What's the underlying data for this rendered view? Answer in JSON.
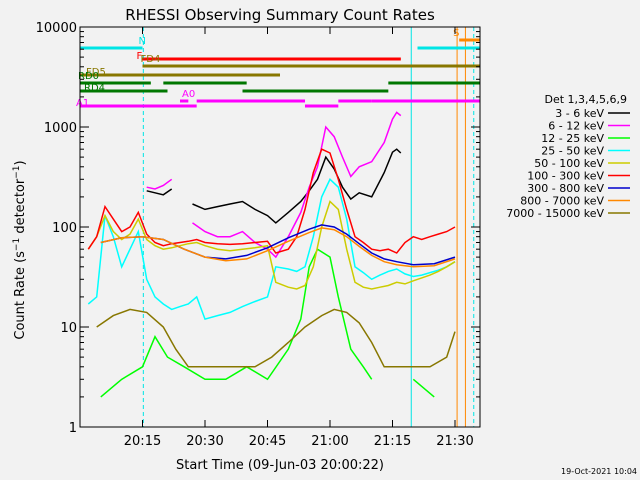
{
  "chart_data": {
    "type": "line",
    "title": "RHESSI Observing Summary Count Rates",
    "xlabel": "Start Time (09-Jun-03 20:00:22)",
    "ylabel": "Count Rate (s⁻¹ detector⁻¹)",
    "ylabel_parts": [
      "Count Rate (s",
      "−1",
      " detector",
      "−1",
      ")"
    ],
    "yscale": "log",
    "xlim": [
      0,
      96
    ],
    "ylim": [
      1,
      10000
    ],
    "x_ticks": [
      {
        "value": 15,
        "label": "20:15"
      },
      {
        "value": 30,
        "label": "20:30"
      },
      {
        "value": 45,
        "label": "20:45"
      },
      {
        "value": 60,
        "label": "21:00"
      },
      {
        "value": 75,
        "label": "21:15"
      },
      {
        "value": 90,
        "label": "21:30"
      }
    ],
    "y_ticks": [
      {
        "value": 1,
        "label": "1"
      },
      {
        "value": 10,
        "label": "10"
      },
      {
        "value": 100,
        "label": "100"
      },
      {
        "value": 1000,
        "label": "1000"
      },
      {
        "value": 10000,
        "label": "10000"
      }
    ],
    "legend_title": "Det 1,3,4,5,6,9",
    "legend_position": "right",
    "timestamp": "19-Oct-2021 10:04",
    "series": [
      {
        "name": "3 - 6 keV",
        "color": "#000000",
        "x": [
          0,
          4,
          8,
          12,
          15,
          16,
          18,
          20,
          22,
          25,
          27,
          30,
          33,
          36,
          39,
          42,
          45,
          47,
          50,
          53,
          55,
          57,
          59,
          61,
          63,
          65,
          67,
          70,
          73,
          75,
          76,
          77,
          78
        ],
        "y": [
          null,
          null,
          null,
          null,
          null,
          230,
          220,
          210,
          240,
          null,
          170,
          150,
          160,
          170,
          180,
          150,
          130,
          110,
          140,
          180,
          230,
          300,
          500,
          380,
          250,
          190,
          220,
          200,
          350,
          560,
          600,
          550,
          null
        ]
      },
      {
        "name": "6 - 12 keV",
        "color": "#ff00ff",
        "x": [
          0,
          4,
          8,
          12,
          15,
          16,
          18,
          20,
          22,
          25,
          27,
          30,
          33,
          36,
          39,
          42,
          45,
          47,
          50,
          53,
          55,
          57,
          59,
          61,
          63,
          65,
          67,
          70,
          73,
          75,
          76,
          77,
          78
        ],
        "y": [
          null,
          null,
          null,
          null,
          null,
          250,
          240,
          260,
          300,
          null,
          110,
          90,
          80,
          80,
          90,
          70,
          60,
          50,
          80,
          140,
          250,
          400,
          1000,
          800,
          500,
          320,
          400,
          450,
          700,
          1200,
          1400,
          1300,
          null
        ]
      },
      {
        "name": "12 - 25 keV",
        "color": "#00ff00",
        "x": [
          0,
          5,
          10,
          15,
          18,
          21,
          25,
          30,
          35,
          40,
          45,
          50,
          53,
          55,
          57,
          60,
          62,
          65,
          68,
          70,
          73,
          76,
          80,
          85,
          90
        ],
        "y": [
          null,
          2,
          3,
          4,
          8,
          5,
          4,
          3,
          3,
          4,
          3,
          6,
          12,
          40,
          60,
          50,
          20,
          6,
          4,
          3,
          null,
          null,
          3,
          2,
          null
        ]
      },
      {
        "name": "25 - 50 keV",
        "color": "#00ffff",
        "x": [
          0,
          2,
          4,
          6,
          8,
          10,
          12,
          14,
          16,
          18,
          20,
          22,
          24,
          26,
          28,
          30,
          33,
          36,
          39,
          42,
          45,
          47,
          50,
          52,
          54,
          56,
          58,
          60,
          62,
          64,
          66,
          68,
          70,
          72,
          74,
          76,
          78,
          80,
          82,
          84,
          86,
          88,
          90
        ],
        "y": [
          null,
          17,
          20,
          130,
          80,
          40,
          60,
          90,
          30,
          20,
          17,
          15,
          16,
          17,
          20,
          12,
          13,
          14,
          16,
          18,
          20,
          40,
          38,
          36,
          40,
          80,
          200,
          300,
          250,
          120,
          40,
          35,
          30,
          33,
          36,
          38,
          34,
          32,
          33,
          35,
          37,
          40,
          45
        ]
      },
      {
        "name": "50 - 100 keV",
        "color": "#cccc00",
        "x": [
          0,
          2,
          4,
          6,
          8,
          10,
          12,
          14,
          16,
          18,
          20,
          22,
          24,
          26,
          28,
          30,
          33,
          36,
          39,
          42,
          45,
          47,
          50,
          52,
          54,
          56,
          58,
          60,
          62,
          64,
          66,
          68,
          70,
          72,
          74,
          76,
          78,
          80,
          82,
          84,
          86,
          88,
          90
        ],
        "y": [
          null,
          60,
          80,
          130,
          90,
          75,
          85,
          120,
          75,
          65,
          60,
          62,
          65,
          68,
          70,
          65,
          60,
          58,
          60,
          62,
          65,
          28,
          25,
          24,
          26,
          40,
          100,
          180,
          150,
          60,
          28,
          25,
          24,
          25,
          26,
          28,
          27,
          29,
          31,
          33,
          36,
          40,
          45
        ]
      },
      {
        "name": "100 - 300 keV",
        "color": "#ff0000",
        "x": [
          0,
          2,
          4,
          6,
          8,
          10,
          12,
          14,
          16,
          18,
          20,
          22,
          24,
          26,
          28,
          30,
          33,
          36,
          39,
          42,
          45,
          47,
          50,
          52,
          54,
          56,
          58,
          60,
          62,
          64,
          66,
          68,
          70,
          72,
          74,
          76,
          78,
          80,
          82,
          84,
          86,
          88,
          90
        ],
        "y": [
          null,
          60,
          80,
          160,
          120,
          90,
          100,
          140,
          85,
          70,
          65,
          68,
          70,
          72,
          75,
          70,
          68,
          67,
          68,
          70,
          72,
          55,
          60,
          80,
          150,
          350,
          600,
          550,
          300,
          150,
          80,
          70,
          60,
          58,
          60,
          55,
          70,
          80,
          75,
          80,
          85,
          90,
          100
        ]
      },
      {
        "name": "300 - 800 keV",
        "color": "#0000cc",
        "x": [
          0,
          5,
          10,
          15,
          20,
          25,
          30,
          35,
          40,
          45,
          50,
          55,
          58,
          61,
          64,
          67,
          70,
          73,
          76,
          80,
          85,
          90
        ],
        "y": [
          null,
          70,
          78,
          80,
          75,
          60,
          50,
          48,
          52,
          62,
          78,
          95,
          105,
          100,
          85,
          68,
          55,
          48,
          45,
          42,
          43,
          50
        ]
      },
      {
        "name": "800 - 7000 keV",
        "color": "#ff8800",
        "x": [
          0,
          5,
          10,
          15,
          20,
          25,
          30,
          35,
          40,
          45,
          50,
          55,
          58,
          61,
          64,
          67,
          70,
          73,
          76,
          80,
          85,
          90,
          92,
          95
        ],
        "y": [
          null,
          70,
          78,
          80,
          75,
          60,
          50,
          46,
          48,
          58,
          72,
          88,
          98,
          94,
          80,
          64,
          52,
          45,
          42,
          40,
          41,
          48,
          null,
          null
        ]
      },
      {
        "name": "7000 - 15000 keV",
        "color": "#887700",
        "x": [
          0,
          4,
          8,
          12,
          16,
          20,
          23,
          26,
          30,
          34,
          38,
          42,
          46,
          50,
          54,
          58,
          61,
          64,
          67,
          70,
          73,
          76,
          80,
          84,
          88,
          90
        ],
        "y": [
          null,
          10,
          13,
          15,
          14,
          10,
          6,
          4,
          4,
          4,
          4,
          4,
          5,
          7,
          10,
          13,
          15,
          14,
          11,
          7,
          4,
          4,
          4,
          4,
          5,
          9
        ]
      }
    ],
    "state_bars": [
      {
        "name": "N",
        "color": "#00e5e5",
        "segments": [
          [
            0,
            15
          ],
          [
            81,
            96
          ]
        ]
      },
      {
        "name": "F",
        "color": "#ff0000",
        "segments": [
          [
            15,
            77
          ]
        ]
      },
      {
        "name": "FD4",
        "color": "#887700",
        "segments": [
          [
            15,
            54
          ],
          [
            54,
            96
          ]
        ]
      },
      {
        "name": "FD5",
        "color": "#887700",
        "segments": [
          [
            0,
            48
          ]
        ]
      },
      {
        "name": "RD0",
        "color": "#007700",
        "segments": [
          [
            0,
            17
          ],
          [
            20,
            40
          ],
          [
            74,
            96
          ]
        ]
      },
      {
        "name": "RD4",
        "color": "#007700",
        "segments": [
          [
            0,
            21
          ],
          [
            39,
            74
          ]
        ]
      },
      {
        "name": "A0",
        "color": "#ff00ff",
        "segments": [
          [
            24,
            26
          ],
          [
            28,
            54
          ],
          [
            62,
            70
          ],
          [
            70,
            96
          ]
        ]
      },
      {
        "name": "A1",
        "color": "#ff00ff",
        "segments": [
          [
            0,
            24
          ],
          [
            24,
            28
          ],
          [
            54,
            62
          ]
        ]
      },
      {
        "name": "S",
        "color": "#ff8800",
        "segments": [
          [
            91,
            96
          ]
        ]
      }
    ],
    "vertical_markers": [
      {
        "x": 15.2,
        "color": "#00e5e5",
        "dashed": true
      },
      {
        "x": 79.5,
        "color": "#00e5e5",
        "dashed": false
      },
      {
        "x": 90.5,
        "color": "#ff8800",
        "dashed": false
      },
      {
        "x": 92.5,
        "color": "#ff8800",
        "dashed": false
      },
      {
        "x": 94.5,
        "color": "#00e5e5",
        "dashed": true
      }
    ]
  }
}
